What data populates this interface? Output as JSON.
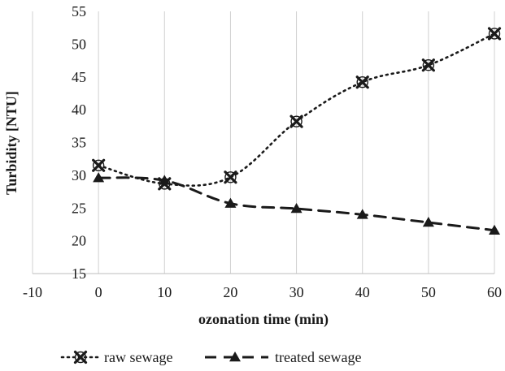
{
  "chart_data": {
    "type": "line",
    "xlabel": "ozonation time (min)",
    "ylabel": "Turbidity [NTU]",
    "xlim": [
      -10,
      60
    ],
    "ylim": [
      15,
      55
    ],
    "x_ticks": [
      "-10",
      "0",
      "10",
      "20",
      "30",
      "40",
      "50",
      "60"
    ],
    "y_ticks": [
      "15",
      "20",
      "25",
      "30",
      "35",
      "40",
      "45",
      "50",
      "55"
    ],
    "grid": "vertical",
    "legend_position": "bottom",
    "series": [
      {
        "name": "raw sewage",
        "line_style": "dotted",
        "marker": "x",
        "color": "#1a1a1a",
        "x": [
          0,
          10,
          20,
          30,
          40,
          50,
          60
        ],
        "y": [
          31.5,
          28.7,
          29.7,
          38.2,
          44.2,
          46.8,
          51.6
        ]
      },
      {
        "name": "treated sewage",
        "line_style": "dashed",
        "marker": "triangle",
        "color": "#1a1a1a",
        "x": [
          0,
          10,
          20,
          30,
          40,
          50,
          60
        ],
        "y": [
          29.6,
          29.2,
          25.7,
          24.9,
          24.0,
          22.8,
          21.6
        ]
      }
    ]
  }
}
